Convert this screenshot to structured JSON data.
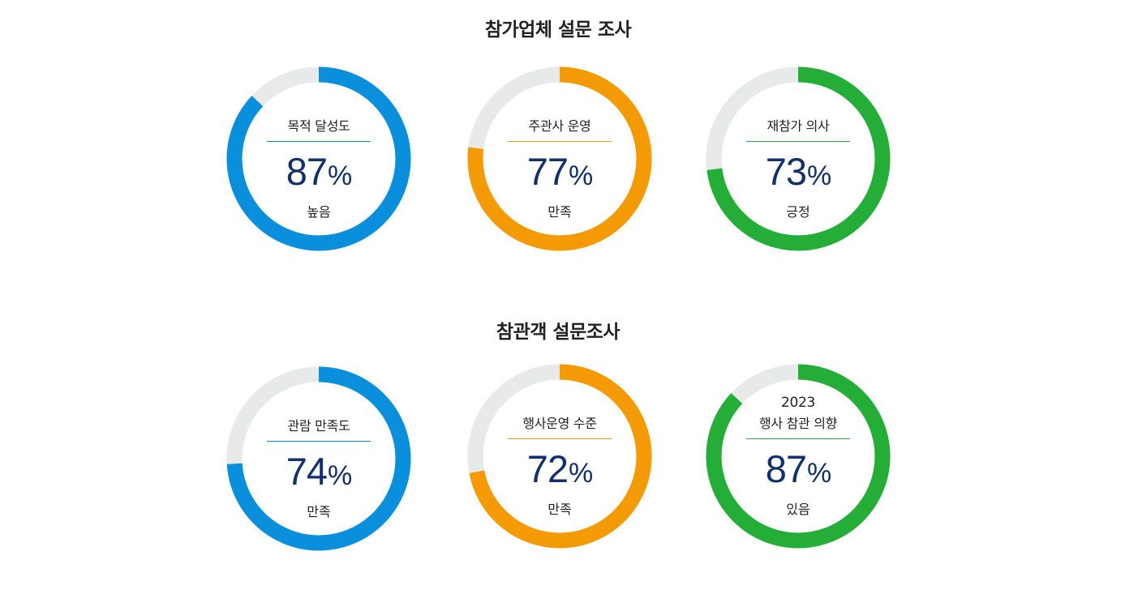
{
  "sections": [
    {
      "title": "참가업체 설문 조사",
      "gauges": [
        {
          "label": "목적 달성도",
          "value": 87,
          "status": "높음",
          "color": "#0a8fdc"
        },
        {
          "label": "주관사 운영",
          "value": 77,
          "status": "만족",
          "color": "#f39a04"
        },
        {
          "label": "재참가 의사",
          "value": 73,
          "status": "긍정",
          "color": "#24ae38"
        }
      ]
    },
    {
      "title": "참관객 설문조사",
      "gauges": [
        {
          "label": "관람 만족도",
          "value": 74,
          "status": "만족",
          "color": "#0a8fdc"
        },
        {
          "label": "행사운영 수준",
          "value": 72,
          "status": "만족",
          "color": "#f39a04"
        },
        {
          "label_year": "2023",
          "label": "행사 참관 의향",
          "value": 87,
          "status": "있음",
          "color": "#24ae38"
        }
      ]
    }
  ],
  "percent_sign": "%",
  "track_color": "#e8eaea",
  "value_color": "#12306b"
}
